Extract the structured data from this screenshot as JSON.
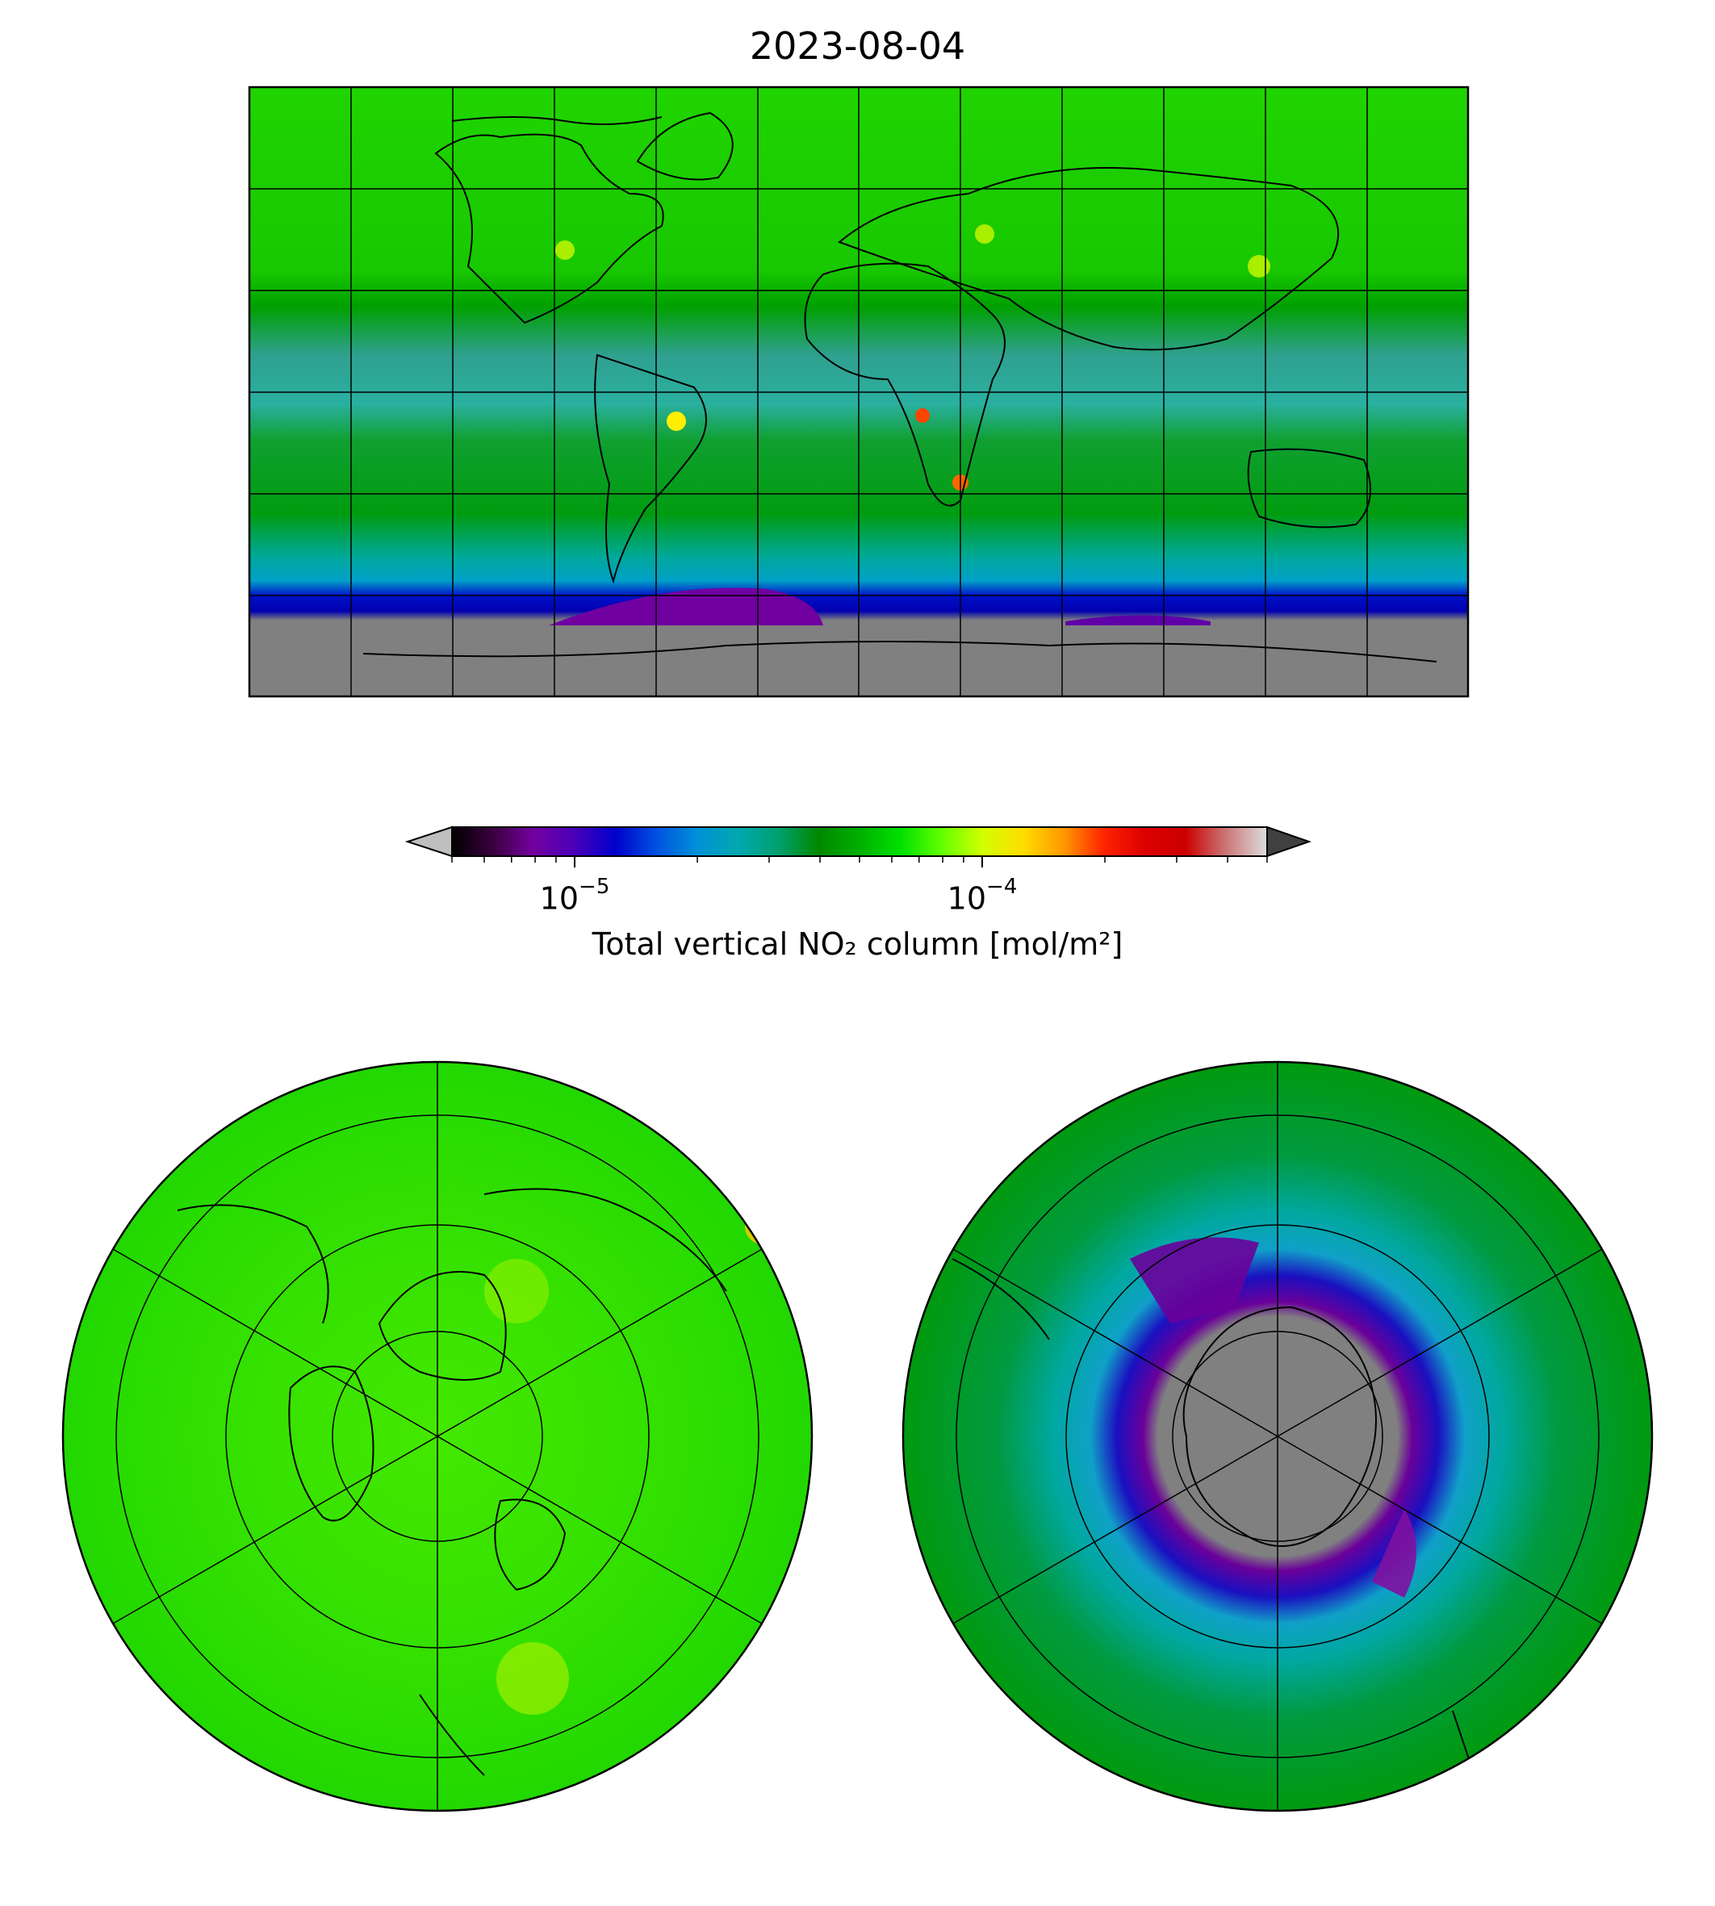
{
  "title": "2023-08-04",
  "colorbar": {
    "label": "Total vertical NO₂ column [mol/m²]",
    "scale": "log",
    "ticks": [
      {
        "base": "10",
        "exponent": "−5",
        "value": 1e-05
      },
      {
        "base": "10",
        "exponent": "−4",
        "value": 0.0001
      }
    ],
    "range": [
      5e-06,
      0.0005
    ],
    "extend": "both",
    "colors": [
      "#000000",
      "#3b003f",
      "#7400a0",
      "#4a00b8",
      "#0000cc",
      "#0050e0",
      "#0090d8",
      "#00a8b0",
      "#00a070",
      "#008800",
      "#00b000",
      "#00e000",
      "#60ff00",
      "#d0ff00",
      "#ffdd00",
      "#ff9900",
      "#ff2200",
      "#dd0000",
      "#cc0000",
      "#cc7777",
      "#dddddd"
    ],
    "under_color": "#bfbfbf",
    "over_color": "#404040"
  },
  "maps": [
    {
      "name": "global-plate-carree",
      "projection": "PlateCarree"
    },
    {
      "name": "north-polar-stereo",
      "projection": "NorthPolarStereo"
    },
    {
      "name": "south-polar-stereo",
      "projection": "SouthPolarStereo"
    }
  ],
  "colors": {
    "nodata": "#808080",
    "background_green": "#22dd00",
    "dark_green": "#009900",
    "teal": "#00aaa0"
  }
}
